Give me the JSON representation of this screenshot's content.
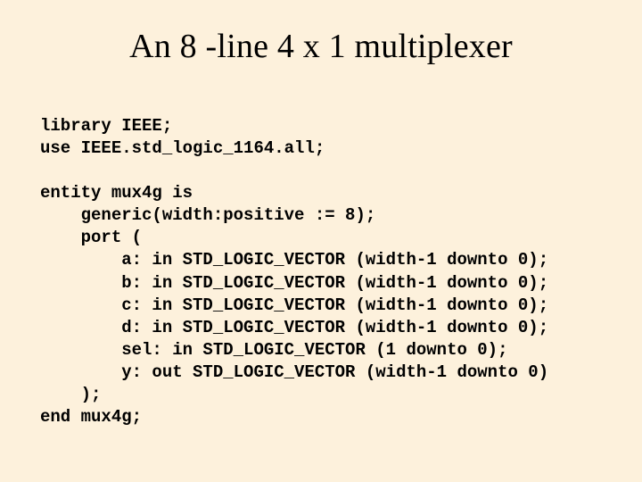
{
  "colors": {
    "background": "#fdf1dc",
    "text": "#000000"
  },
  "fonts": {
    "title_family": "Times New Roman",
    "title_size_pt": 38,
    "title_weight": 400,
    "code_family": "Courier New",
    "code_size_pt": 19,
    "code_weight": "bold",
    "code_line_height": 1.32
  },
  "title": "An 8 -line 4 x 1 multiplexer",
  "code": {
    "l01": "library IEEE;",
    "l02": "use IEEE.std_logic_1164.all;",
    "l03": "entity mux4g is",
    "l04": "    generic(width:positive := 8);",
    "l05": "    port (",
    "l06": "        a: in STD_LOGIC_VECTOR (width-1 downto 0);",
    "l07": "        b: in STD_LOGIC_VECTOR (width-1 downto 0);",
    "l08": "        c: in STD_LOGIC_VECTOR (width-1 downto 0);",
    "l09": "        d: in STD_LOGIC_VECTOR (width-1 downto 0);",
    "l10": "        sel: in STD_LOGIC_VECTOR (1 downto 0);",
    "l11": "        y: out STD_LOGIC_VECTOR (width-1 downto 0)",
    "l12": "    );",
    "l13": "end mux4g;"
  }
}
